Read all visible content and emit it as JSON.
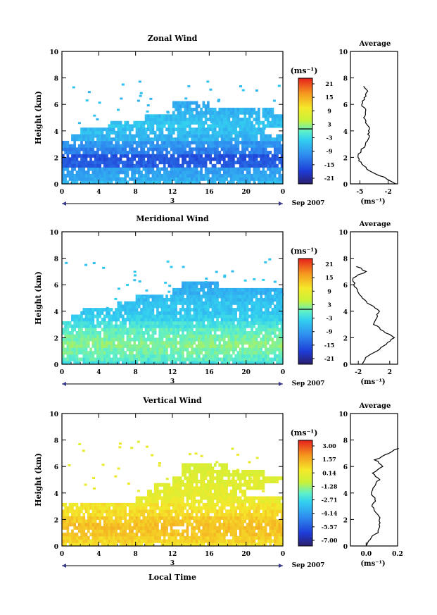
{
  "panels": [
    {
      "title": "Zonal Wind",
      "ylabel": "Height (km)",
      "yticks": [
        "0",
        "2",
        "4",
        "6",
        "8",
        "10"
      ],
      "xticks": [
        "0",
        "4",
        "8",
        "12",
        "16",
        "20",
        "0"
      ],
      "date_marker": "3",
      "date_label": "Sep 2007",
      "unit": "(ms⁻¹)",
      "cbar_ticks": [
        "21",
        "15",
        "9",
        "3",
        "-3",
        "-9",
        "-15",
        "-21"
      ],
      "avg_title": "Average",
      "avg_xticks": [
        "-5",
        "-2"
      ],
      "avg_unit": "(ms⁻¹)"
    },
    {
      "title": "Meridional Wind",
      "ylabel": "Height (km)",
      "yticks": [
        "0",
        "2",
        "4",
        "6",
        "8",
        "10"
      ],
      "xticks": [
        "0",
        "4",
        "8",
        "12",
        "16",
        "20",
        "0"
      ],
      "date_marker": "3",
      "date_label": "Sep 2007",
      "unit": "(ms⁻¹)",
      "cbar_ticks": [
        "21",
        "15",
        "9",
        "3",
        "-3",
        "-9",
        "-15",
        "-21"
      ],
      "avg_title": "Average",
      "avg_xticks": [
        "-2",
        "2"
      ],
      "avg_unit": "(ms⁻¹)"
    },
    {
      "title": "Vertical Wind",
      "ylabel": "Height (km)",
      "yticks": [
        "0",
        "2",
        "4",
        "6",
        "8",
        "10"
      ],
      "xticks": [
        "0",
        "4",
        "8",
        "12",
        "16",
        "20",
        "0"
      ],
      "date_marker": "3",
      "date_label": "Sep 2007",
      "unit": "(ms⁻¹)",
      "cbar_ticks": [
        "3.00",
        "1.57",
        "0.14",
        "-1.28",
        "-2.71",
        "-4.14",
        "-5.57",
        "-7.00"
      ],
      "avg_title": "Average",
      "avg_xticks": [
        "0.0",
        "0.2"
      ],
      "avg_unit": "(ms⁻¹)"
    }
  ],
  "xlabel": "Local Time",
  "chart_data": [
    {
      "type": "heatmap",
      "title": "Zonal Wind",
      "ylabel": "Height (km)",
      "xlim": [
        0,
        24
      ],
      "ylim": [
        0,
        10
      ],
      "clim": [
        -24,
        24
      ],
      "colorscale": "jet",
      "rows": [
        {
          "h": 0.1,
          "x0": 0,
          "x1": 24,
          "v": -6
        },
        {
          "h": 0.5,
          "x0": 0,
          "x1": 24,
          "v": -8
        },
        {
          "h": 1.0,
          "x0": 0,
          "x1": 24,
          "v": -9
        },
        {
          "h": 1.5,
          "x0": 0,
          "x1": 24,
          "v": -15
        },
        {
          "h": 2.0,
          "x0": 0,
          "x1": 24,
          "v": -16
        },
        {
          "h": 2.5,
          "x0": 0,
          "x1": 24,
          "v": -12
        },
        {
          "h": 3.0,
          "x0": 0,
          "x1": 24,
          "v": -10
        },
        {
          "h": 3.5,
          "x0": 1,
          "x1": 24,
          "v": -7
        },
        {
          "h": 4.0,
          "x0": 2,
          "x1": 22,
          "v": -6
        },
        {
          "h": 4.5,
          "x0": 5,
          "x1": 24,
          "v": -5
        },
        {
          "h": 5.0,
          "x0": 9,
          "x1": 24,
          "v": -6
        },
        {
          "h": 5.5,
          "x0": 12,
          "x1": 23,
          "v": -7
        },
        {
          "h": 6.0,
          "x0": 12,
          "x1": 16,
          "v": -8
        }
      ],
      "average": {
        "xlim": [
          -6,
          -1
        ],
        "heights": [
          0.0,
          0.5,
          1.0,
          1.5,
          2.0,
          2.5,
          3.0,
          3.5,
          4.0,
          4.5,
          5.0,
          5.5,
          6.0,
          6.5,
          7.0,
          7.5
        ],
        "values": [
          -1.2,
          -2.5,
          -4.0,
          -4.8,
          -5.2,
          -4.9,
          -4.3,
          -4.1,
          -4.0,
          -4.2,
          -4.6,
          -4.4,
          -4.8,
          -4.5,
          -4.2,
          -4.6
        ]
      }
    },
    {
      "type": "heatmap",
      "title": "Meridional Wind",
      "ylabel": "Height (km)",
      "xlim": [
        0,
        24
      ],
      "ylim": [
        0,
        10
      ],
      "clim": [
        -24,
        24
      ],
      "colorscale": "jet",
      "rows": [
        {
          "h": 0.1,
          "x0": 0,
          "x1": 24,
          "v": -2
        },
        {
          "h": 0.5,
          "x0": 0,
          "x1": 24,
          "v": 0
        },
        {
          "h": 1.0,
          "x0": 0,
          "x1": 24,
          "v": 1
        },
        {
          "h": 1.5,
          "x0": 0,
          "x1": 24,
          "v": 2
        },
        {
          "h": 2.0,
          "x0": 0,
          "x1": 24,
          "v": 1
        },
        {
          "h": 2.5,
          "x0": 0,
          "x1": 24,
          "v": 0
        },
        {
          "h": 3.0,
          "x0": 0,
          "x1": 24,
          "v": -2
        },
        {
          "h": 3.5,
          "x0": 1,
          "x1": 24,
          "v": -4
        },
        {
          "h": 4.0,
          "x0": 2,
          "x1": 24,
          "v": -5
        },
        {
          "h": 4.5,
          "x0": 6,
          "x1": 24,
          "v": -5
        },
        {
          "h": 5.0,
          "x0": 8,
          "x1": 24,
          "v": -6
        },
        {
          "h": 5.5,
          "x0": 12,
          "x1": 24,
          "v": -7
        },
        {
          "h": 6.0,
          "x0": 13,
          "x1": 17,
          "v": -8
        }
      ],
      "average": {
        "xlim": [
          -3,
          3
        ],
        "heights": [
          0.0,
          0.5,
          1.0,
          1.5,
          2.0,
          2.5,
          3.0,
          3.5,
          4.0,
          4.5,
          5.0,
          5.5,
          6.0,
          6.5,
          7.0,
          7.5
        ],
        "values": [
          -1.5,
          -1.0,
          0.3,
          1.5,
          2.5,
          1.2,
          0.0,
          0.2,
          0.8,
          -0.5,
          -1.5,
          -2.0,
          -2.5,
          -2.8,
          -1.0,
          -2.5
        ]
      }
    },
    {
      "type": "heatmap",
      "title": "Vertical Wind",
      "ylabel": "Height (km)",
      "xlabel": "Local Time",
      "xlim": [
        0,
        24
      ],
      "ylim": [
        0,
        10
      ],
      "clim": [
        -7.0,
        3.0
      ],
      "colorscale": "jet",
      "rows": [
        {
          "h": 0.1,
          "x0": 0,
          "x1": 24,
          "v": 0.3
        },
        {
          "h": 0.5,
          "x0": 0,
          "x1": 24,
          "v": 0.6
        },
        {
          "h": 1.0,
          "x0": 0,
          "x1": 24,
          "v": 0.8
        },
        {
          "h": 1.5,
          "x0": 0,
          "x1": 24,
          "v": 0.9
        },
        {
          "h": 2.0,
          "x0": 0,
          "x1": 24,
          "v": 0.7
        },
        {
          "h": 2.5,
          "x0": 0,
          "x1": 24,
          "v": 0.4
        },
        {
          "h": 3.0,
          "x0": 0,
          "x1": 24,
          "v": 0.2
        },
        {
          "h": 3.5,
          "x0": 8,
          "x1": 24,
          "v": -0.1
        },
        {
          "h": 4.0,
          "x0": 9,
          "x1": 20,
          "v": -0.2
        },
        {
          "h": 4.5,
          "x0": 10,
          "x1": 22,
          "v": -0.3
        },
        {
          "h": 5.0,
          "x0": 12,
          "x1": 24,
          "v": -0.4
        },
        {
          "h": 5.5,
          "x0": 13,
          "x1": 22,
          "v": -0.5
        },
        {
          "h": 6.0,
          "x0": 13,
          "x1": 18,
          "v": -0.6
        }
      ],
      "average": {
        "xlim": [
          -0.1,
          0.2
        ],
        "heights": [
          0.0,
          0.5,
          1.0,
          1.5,
          2.0,
          2.5,
          3.0,
          3.5,
          4.0,
          4.5,
          5.0,
          5.5,
          6.0,
          6.5,
          7.0,
          7.5
        ],
        "values": [
          0.0,
          0.02,
          0.07,
          0.08,
          0.09,
          0.06,
          0.04,
          0.06,
          0.03,
          0.05,
          0.08,
          0.04,
          0.1,
          0.06,
          0.14,
          0.22
        ]
      }
    }
  ]
}
